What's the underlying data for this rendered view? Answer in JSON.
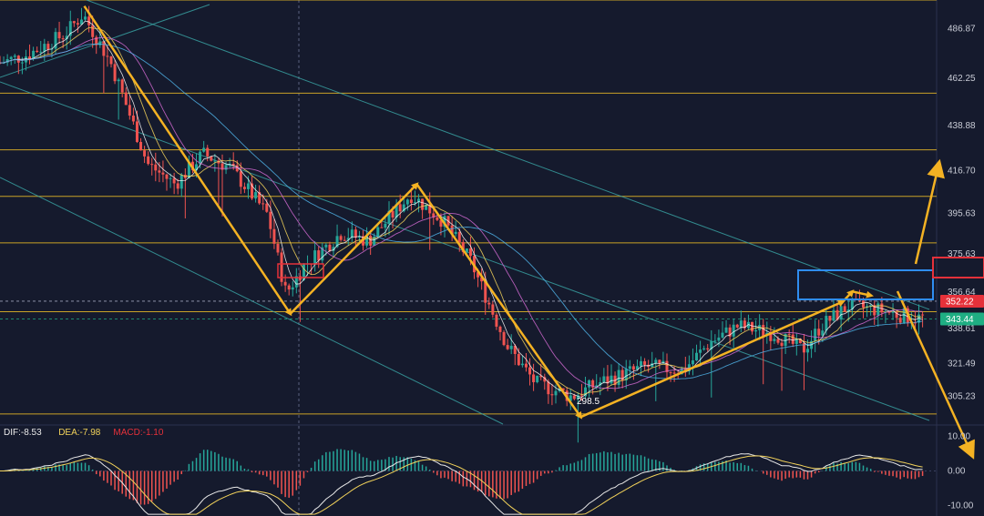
{
  "chart_data": [
    {
      "type": "candlestick",
      "panel": "price",
      "y_ticks": [
        486.87,
        462.25,
        438.88,
        416.7,
        395.63,
        375.63,
        356.64,
        338.61,
        321.49,
        305.23
      ],
      "ylim": [
        291.5,
        501.0
      ],
      "price_badges": [
        {
          "label": "352.22",
          "color": "#e5313a"
        },
        {
          "label": "343.44",
          "color": "#1fae83"
        }
      ],
      "horizontal_levels": [
        501.0,
        455.0,
        427.0,
        404.0,
        381.0,
        347.0,
        296.5
      ],
      "marked_low_label": "298.5",
      "path_points": [
        [
          0.09,
          498
        ],
        [
          0.31,
          346
        ],
        [
          0.445,
          410
        ],
        [
          0.62,
          295
        ],
        [
          0.9,
          352
        ],
        [
          0.91,
          357
        ],
        [
          0.93,
          355
        ]
      ],
      "colors": {
        "up": "#26a69a",
        "down": "#ef5350",
        "yellow_level": "#c9a227",
        "channel": "#3aa7a7",
        "arrow": "#f4b223",
        "highlight_red": "#e5313a",
        "highlight_blue": "#2f8df0"
      }
    },
    {
      "type": "macd",
      "panel": "macd",
      "legend": [
        {
          "key": "DIF",
          "value": "-8.53",
          "color": "#e8e8e8"
        },
        {
          "key": "DEA",
          "value": "-7.98",
          "color": "#f2d25a"
        },
        {
          "key": "MACD",
          "value": "-1.10",
          "color": "#e5313a"
        }
      ],
      "y_ticks": [
        10.0,
        0.0,
        -10.0
      ],
      "ylim": [
        -13,
        13
      ]
    }
  ]
}
